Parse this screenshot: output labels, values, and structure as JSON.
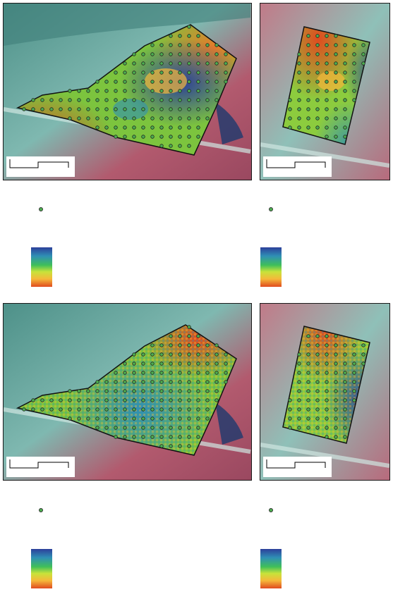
{
  "maps": [
    {
      "id": "top-left",
      "kind": "interpolated-smooth",
      "field": "large-field"
    },
    {
      "id": "top-right",
      "kind": "interpolated-smooth",
      "field": "small-field"
    },
    {
      "id": "bottom-left",
      "kind": "interpolated-grainy",
      "field": "large-field"
    },
    {
      "id": "bottom-right",
      "kind": "interpolated-grainy",
      "field": "small-field"
    }
  ],
  "legend": {
    "sample_point_icon": "green-dot-icon",
    "colorramp": [
      "#2c3f9a",
      "#2f8fb5",
      "#3fbf5a",
      "#c7e33a",
      "#f5b93a",
      "#e04b1f"
    ]
  },
  "colors": {
    "imagery_red": "#b2586f",
    "imagery_teal": "#5fa6a0",
    "boundary": "#111111",
    "point_fill": "#4caf50"
  }
}
